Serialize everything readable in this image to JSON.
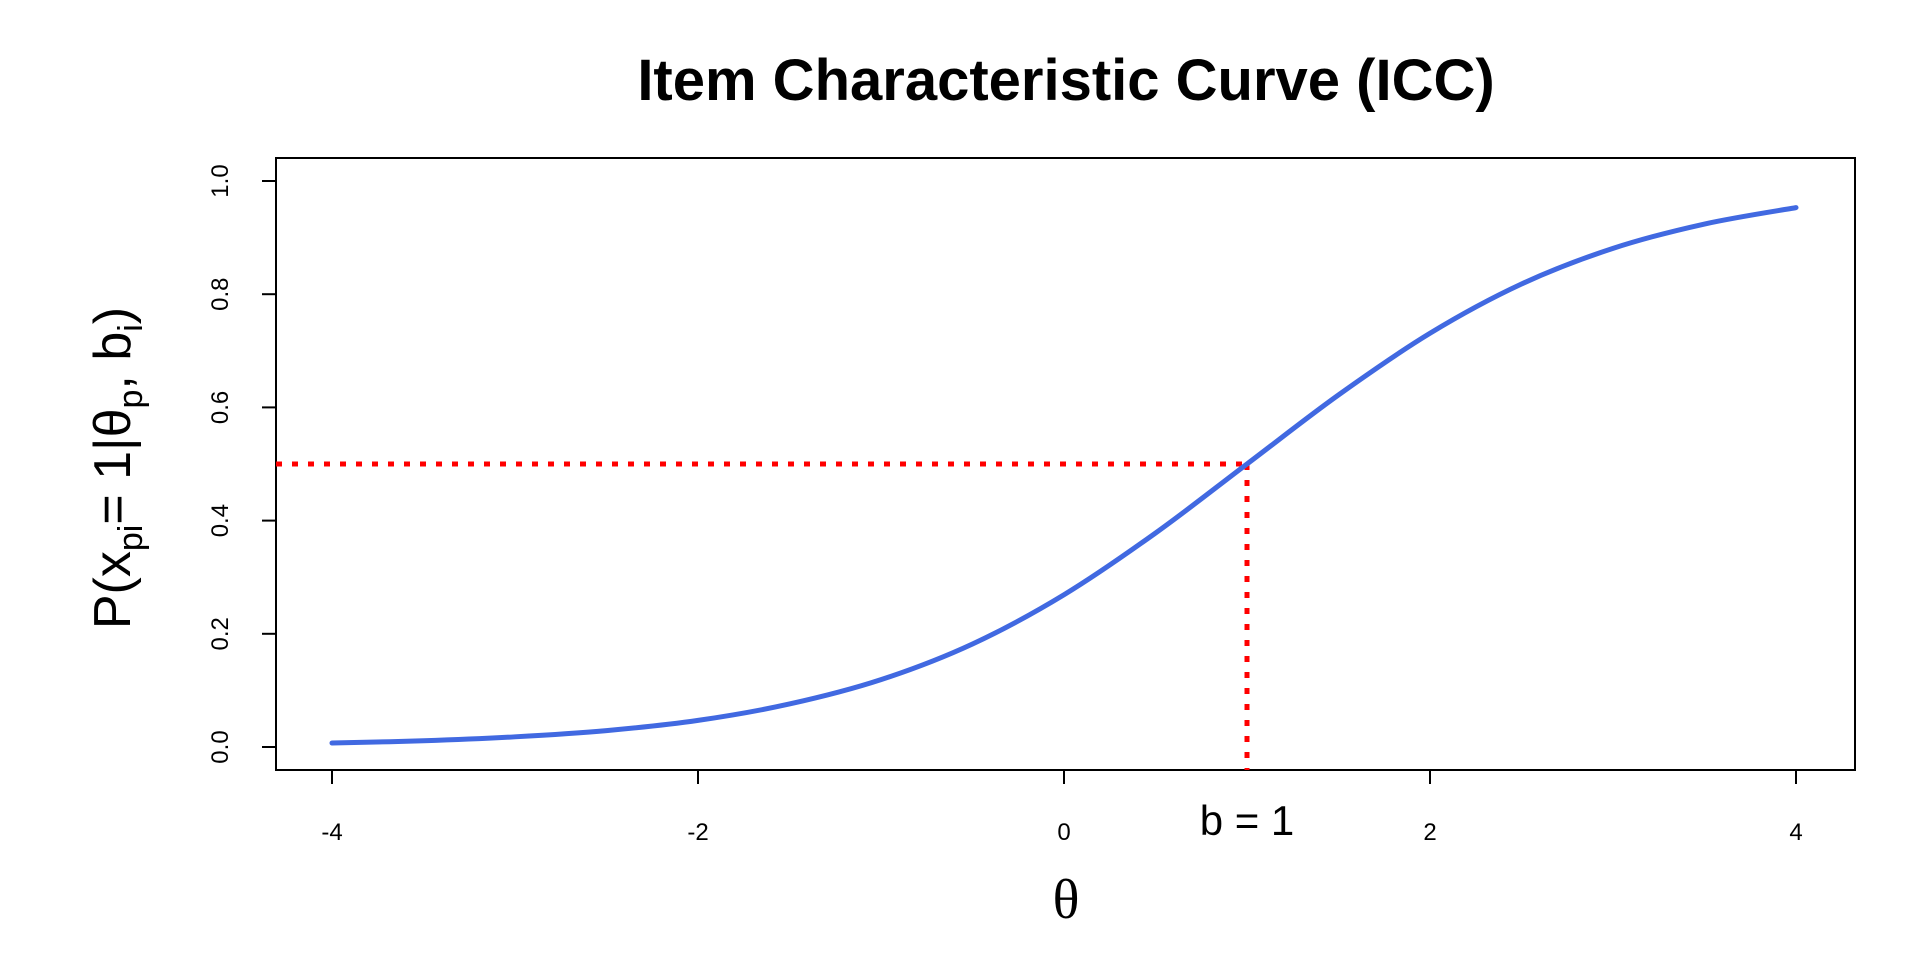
{
  "chart_data": {
    "type": "line",
    "title": "Item Characteristic Curve (ICC)",
    "xlabel": "θ",
    "ylabel": {
      "p": "P(x",
      "pi": "pi",
      "eq": "= 1|θ",
      "p2": "p",
      "comma": ", b",
      "i": "i",
      "close": ")"
    },
    "xlim": [
      -4,
      4
    ],
    "ylim": [
      0,
      1
    ],
    "x_ticks": [
      -4,
      -2,
      0,
      2,
      4
    ],
    "x_tick_labels": [
      "-4",
      "-2",
      "0",
      "2",
      "4"
    ],
    "y_ticks": [
      0,
      0.2,
      0.4,
      0.6,
      0.8,
      1
    ],
    "y_tick_labels": [
      "0.0",
      "0.2",
      "0.4",
      "0.6",
      "0.8",
      "1.0"
    ],
    "series": [
      {
        "color": "#4169E1",
        "x": [
          -4,
          -3.5,
          -3,
          -2.5,
          -2,
          -1.5,
          -1,
          -0.5,
          0,
          0.5,
          1,
          1.5,
          2,
          2.5,
          3,
          3.5,
          4
        ],
        "y": [
          0.007,
          0.011,
          0.018,
          0.029,
          0.047,
          0.076,
          0.119,
          0.182,
          0.269,
          0.378,
          0.5,
          0.622,
          0.731,
          0.818,
          0.881,
          0.924,
          0.953
        ]
      }
    ],
    "reference_lines": {
      "color": "#FF0000",
      "style": "dotted",
      "b": 1,
      "p": 0.5
    },
    "annotation": {
      "text": "b = 1",
      "x": 1
    },
    "grid": false,
    "legend": "none"
  }
}
